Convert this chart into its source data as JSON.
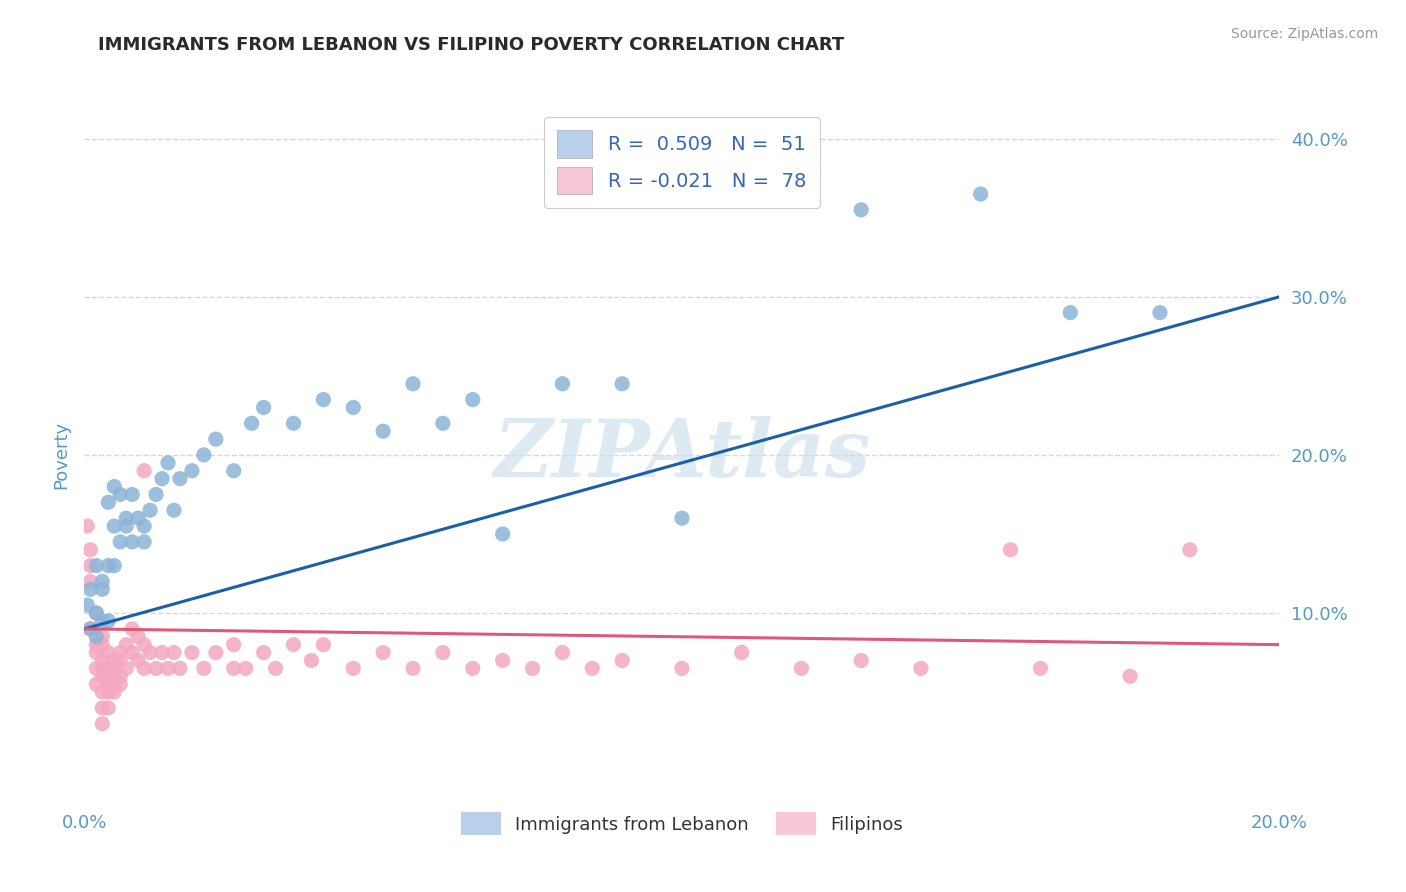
{
  "title": "IMMIGRANTS FROM LEBANON VS FILIPINO POVERTY CORRELATION CHART",
  "source": "Source: ZipAtlas.com",
  "ylabel": "Poverty",
  "watermark": "ZIPAtlas",
  "xlim": [
    0.0,
    0.2
  ],
  "ylim": [
    -0.02,
    0.42
  ],
  "yticks": [
    0.1,
    0.2,
    0.3,
    0.4
  ],
  "ytick_labels": [
    "10.0%",
    "20.0%",
    "30.0%",
    "40.0%"
  ],
  "r_lebanon": 0.509,
  "n_lebanon": 51,
  "r_filipino": -0.021,
  "n_filipino": 78,
  "color_lebanon": "#8ab4d8",
  "color_filipino": "#f4a8c0",
  "color_lebanon_line": "#1a5fa8",
  "color_filipino_line": "#e05878",
  "legend_box_color_lebanon": "#b8d0ea",
  "legend_box_color_filipino": "#f9c8d8",
  "scatter_lebanon": [
    [
      0.0005,
      0.105
    ],
    [
      0.001,
      0.09
    ],
    [
      0.001,
      0.115
    ],
    [
      0.002,
      0.085
    ],
    [
      0.002,
      0.1
    ],
    [
      0.002,
      0.13
    ],
    [
      0.003,
      0.12
    ],
    [
      0.003,
      0.095
    ],
    [
      0.003,
      0.115
    ],
    [
      0.004,
      0.095
    ],
    [
      0.004,
      0.13
    ],
    [
      0.004,
      0.17
    ],
    [
      0.005,
      0.155
    ],
    [
      0.005,
      0.13
    ],
    [
      0.005,
      0.18
    ],
    [
      0.006,
      0.145
    ],
    [
      0.006,
      0.175
    ],
    [
      0.007,
      0.16
    ],
    [
      0.007,
      0.155
    ],
    [
      0.008,
      0.145
    ],
    [
      0.008,
      0.175
    ],
    [
      0.009,
      0.16
    ],
    [
      0.01,
      0.155
    ],
    [
      0.01,
      0.145
    ],
    [
      0.011,
      0.165
    ],
    [
      0.012,
      0.175
    ],
    [
      0.013,
      0.185
    ],
    [
      0.014,
      0.195
    ],
    [
      0.015,
      0.165
    ],
    [
      0.016,
      0.185
    ],
    [
      0.018,
      0.19
    ],
    [
      0.02,
      0.2
    ],
    [
      0.022,
      0.21
    ],
    [
      0.025,
      0.19
    ],
    [
      0.028,
      0.22
    ],
    [
      0.03,
      0.23
    ],
    [
      0.035,
      0.22
    ],
    [
      0.04,
      0.235
    ],
    [
      0.045,
      0.23
    ],
    [
      0.05,
      0.215
    ],
    [
      0.055,
      0.245
    ],
    [
      0.06,
      0.22
    ],
    [
      0.065,
      0.235
    ],
    [
      0.07,
      0.15
    ],
    [
      0.08,
      0.245
    ],
    [
      0.09,
      0.245
    ],
    [
      0.1,
      0.16
    ],
    [
      0.13,
      0.355
    ],
    [
      0.15,
      0.365
    ],
    [
      0.165,
      0.29
    ],
    [
      0.18,
      0.29
    ]
  ],
  "scatter_filipino": [
    [
      0.0005,
      0.155
    ],
    [
      0.001,
      0.13
    ],
    [
      0.001,
      0.14
    ],
    [
      0.001,
      0.12
    ],
    [
      0.001,
      0.09
    ],
    [
      0.002,
      0.1
    ],
    [
      0.002,
      0.075
    ],
    [
      0.002,
      0.055
    ],
    [
      0.002,
      0.08
    ],
    [
      0.002,
      0.065
    ],
    [
      0.003,
      0.085
    ],
    [
      0.003,
      0.07
    ],
    [
      0.003,
      0.08
    ],
    [
      0.003,
      0.06
    ],
    [
      0.003,
      0.05
    ],
    [
      0.003,
      0.065
    ],
    [
      0.003,
      0.04
    ],
    [
      0.003,
      0.03
    ],
    [
      0.004,
      0.075
    ],
    [
      0.004,
      0.06
    ],
    [
      0.004,
      0.05
    ],
    [
      0.004,
      0.04
    ],
    [
      0.004,
      0.065
    ],
    [
      0.004,
      0.055
    ],
    [
      0.005,
      0.07
    ],
    [
      0.005,
      0.055
    ],
    [
      0.005,
      0.065
    ],
    [
      0.005,
      0.05
    ],
    [
      0.005,
      0.06
    ],
    [
      0.006,
      0.075
    ],
    [
      0.006,
      0.06
    ],
    [
      0.006,
      0.07
    ],
    [
      0.006,
      0.055
    ],
    [
      0.007,
      0.065
    ],
    [
      0.007,
      0.08
    ],
    [
      0.008,
      0.075
    ],
    [
      0.008,
      0.09
    ],
    [
      0.009,
      0.085
    ],
    [
      0.009,
      0.07
    ],
    [
      0.01,
      0.08
    ],
    [
      0.01,
      0.065
    ],
    [
      0.01,
      0.19
    ],
    [
      0.011,
      0.075
    ],
    [
      0.012,
      0.065
    ],
    [
      0.013,
      0.075
    ],
    [
      0.014,
      0.065
    ],
    [
      0.015,
      0.075
    ],
    [
      0.016,
      0.065
    ],
    [
      0.018,
      0.075
    ],
    [
      0.02,
      0.065
    ],
    [
      0.022,
      0.075
    ],
    [
      0.025,
      0.065
    ],
    [
      0.025,
      0.08
    ],
    [
      0.027,
      0.065
    ],
    [
      0.03,
      0.075
    ],
    [
      0.032,
      0.065
    ],
    [
      0.035,
      0.08
    ],
    [
      0.038,
      0.07
    ],
    [
      0.04,
      0.08
    ],
    [
      0.045,
      0.065
    ],
    [
      0.05,
      0.075
    ],
    [
      0.055,
      0.065
    ],
    [
      0.06,
      0.075
    ],
    [
      0.065,
      0.065
    ],
    [
      0.07,
      0.07
    ],
    [
      0.075,
      0.065
    ],
    [
      0.08,
      0.075
    ],
    [
      0.085,
      0.065
    ],
    [
      0.09,
      0.07
    ],
    [
      0.1,
      0.065
    ],
    [
      0.11,
      0.075
    ],
    [
      0.12,
      0.065
    ],
    [
      0.13,
      0.07
    ],
    [
      0.14,
      0.065
    ],
    [
      0.155,
      0.14
    ],
    [
      0.16,
      0.065
    ],
    [
      0.175,
      0.06
    ],
    [
      0.185,
      0.14
    ]
  ],
  "title_fontsize": 13,
  "tick_color": "#5599cc",
  "grid_color": "#c8dcea",
  "watermark_color": "#c8dcea",
  "watermark_alpha": 0.6,
  "legend_text_color": "#3366bb"
}
